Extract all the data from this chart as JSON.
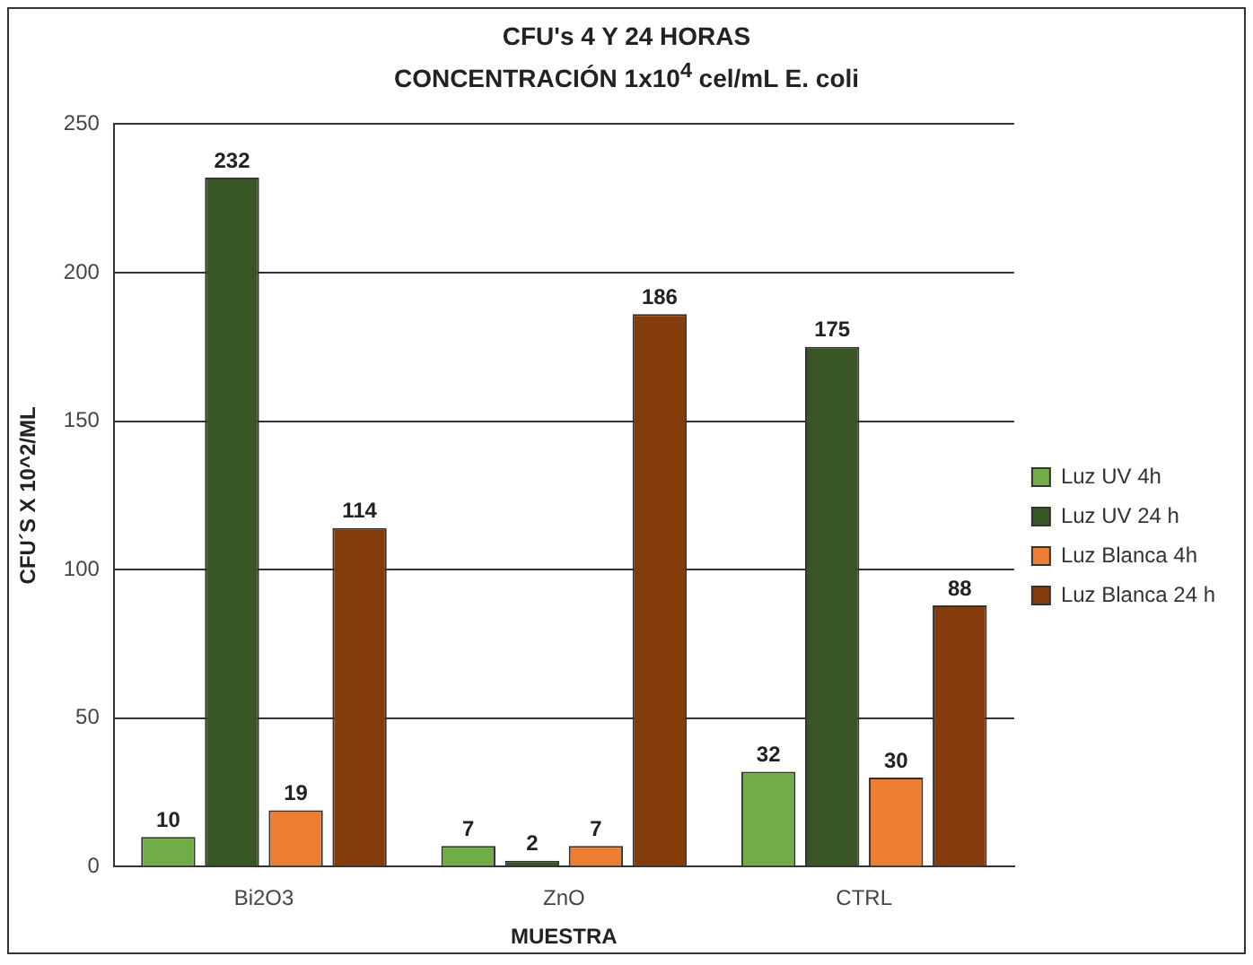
{
  "chart_data": {
    "type": "bar",
    "title": "CFU's 4 Y 24 HORAS",
    "subtitle": "CONCENTRACIÓN 1x10$^{4}$ cel/mL E. coli",
    "xlabel": "MUESTRA",
    "ylabel": "CFU´S X 10^2/ML",
    "categories": [
      "Bi2O3",
      "ZnO",
      "CTRL"
    ],
    "series": [
      {
        "name": "Luz UV 4h",
        "color": "#70ad47",
        "values": [
          10,
          7,
          32
        ]
      },
      {
        "name": "Luz UV 24 h",
        "color": "#375623",
        "values": [
          232,
          2,
          175
        ]
      },
      {
        "name": "Luz Blanca 4h",
        "color": "#ed7d31",
        "values": [
          19,
          7,
          30
        ]
      },
      {
        "name": "Luz Blanca 24 h",
        "color": "#843c0c",
        "values": [
          114,
          186,
          88
        ]
      }
    ],
    "ylim": [
      0,
      250
    ],
    "yticks": [
      0,
      50,
      100,
      150,
      200,
      250
    ],
    "grid": "y",
    "legend": "right",
    "data_labels": true
  }
}
